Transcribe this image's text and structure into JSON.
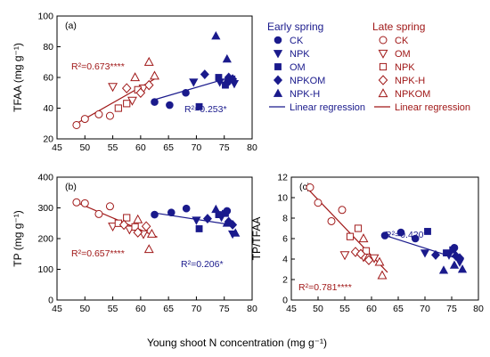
{
  "figure": {
    "shared_xlabel": "Young shoot N concentration (mg g⁻¹)",
    "colors": {
      "early": "#1a1a8c",
      "late": "#a01818",
      "axis": "#000000"
    }
  },
  "legend": {
    "early": {
      "title": "Early spring",
      "items": [
        "CK",
        "NPK",
        "OM",
        "NPKOM",
        "NPK-H"
      ],
      "markers": [
        "circle",
        "triangle-down",
        "square",
        "diamond",
        "triangle-up"
      ],
      "regression_label": "Linear regression"
    },
    "late": {
      "title": "Late spring",
      "items": [
        "CK",
        "OM",
        "NPK",
        "NPK-H",
        "NPKOM"
      ],
      "markers": [
        "circle-open",
        "triangle-down-open",
        "square-open",
        "diamond-open",
        "triangle-up-open"
      ],
      "regression_label": "Linear regression"
    }
  },
  "chart_data": [
    {
      "type": "scatter",
      "panel": "(a)",
      "ylabel": "TFAA (mg g⁻¹)",
      "xlim": [
        45,
        80
      ],
      "ylim": [
        20,
        100
      ],
      "xticks": [
        45,
        50,
        55,
        60,
        65,
        70,
        75,
        80
      ],
      "yticks": [
        20,
        40,
        60,
        80,
        100
      ],
      "early_r2": "R²=0.253*",
      "late_r2": "R²=0.673****",
      "series": [
        {
          "group": "early",
          "treatment": "CK",
          "marker": "circle",
          "x": [
            62.5,
            65.2,
            68.1,
            75.6
          ],
          "y": [
            44,
            42,
            50,
            57
          ]
        },
        {
          "group": "early",
          "treatment": "NPK",
          "marker": "triangle-down",
          "x": [
            69.5,
            74.2,
            76.8
          ],
          "y": [
            57,
            57,
            56
          ]
        },
        {
          "group": "early",
          "treatment": "OM",
          "marker": "square",
          "x": [
            70.5,
            74.0,
            75.2
          ],
          "y": [
            41,
            60,
            55
          ]
        },
        {
          "group": "early",
          "treatment": "NPKOM",
          "marker": "diamond",
          "x": [
            71.5,
            75.8,
            76.5
          ],
          "y": [
            62,
            60,
            59
          ]
        },
        {
          "group": "early",
          "treatment": "NPK-H",
          "marker": "triangle-up",
          "x": [
            73.5,
            75.5
          ],
          "y": [
            87,
            72
          ]
        },
        {
          "group": "late",
          "treatment": "CK",
          "marker": "circle-open",
          "x": [
            48.5,
            50.0,
            52.5,
            54.5
          ],
          "y": [
            29,
            33,
            36,
            35
          ]
        },
        {
          "group": "late",
          "treatment": "OM",
          "marker": "triangle-down-open",
          "x": [
            55.0,
            58.5,
            60.5
          ],
          "y": [
            54,
            45,
            53
          ]
        },
        {
          "group": "late",
          "treatment": "NPK",
          "marker": "square-open",
          "x": [
            56.0,
            57.5,
            59.5
          ],
          "y": [
            40,
            43,
            52
          ]
        },
        {
          "group": "late",
          "treatment": "NPK-H",
          "marker": "diamond-open",
          "x": [
            57.5,
            60.0,
            61.5
          ],
          "y": [
            53,
            50,
            55
          ]
        },
        {
          "group": "late",
          "treatment": "NPKOM",
          "marker": "triangle-up-open",
          "x": [
            59.0,
            61.5,
            62.5
          ],
          "y": [
            60,
            70,
            61
          ]
        }
      ],
      "regressions": [
        {
          "group": "early",
          "x": [
            62,
            77
          ],
          "y": [
            45,
            61
          ]
        },
        {
          "group": "late",
          "x": [
            48,
            63
          ],
          "y": [
            29,
            60
          ]
        }
      ]
    },
    {
      "type": "scatter",
      "panel": "(b)",
      "ylabel": "TP (mg g⁻¹)",
      "xlim": [
        45,
        80
      ],
      "ylim": [
        0,
        400
      ],
      "xticks": [
        45,
        50,
        55,
        60,
        65,
        70,
        75,
        80
      ],
      "yticks": [
        0,
        100,
        200,
        300,
        400
      ],
      "early_r2": "R²=0.206*",
      "late_r2": "R²=0.657****",
      "series": [
        {
          "group": "early",
          "treatment": "CK",
          "marker": "circle",
          "x": [
            62.5,
            65.5,
            68.2,
            75.5
          ],
          "y": [
            278,
            285,
            298,
            290
          ]
        },
        {
          "group": "early",
          "treatment": "NPK",
          "marker": "triangle-down",
          "x": [
            70.0,
            74.5,
            76.5
          ],
          "y": [
            260,
            270,
            215
          ]
        },
        {
          "group": "early",
          "treatment": "OM",
          "marker": "square",
          "x": [
            70.5,
            74.0,
            75.2
          ],
          "y": [
            232,
            278,
            282
          ]
        },
        {
          "group": "early",
          "treatment": "NPKOM",
          "marker": "diamond",
          "x": [
            72.0,
            75.8,
            76.5
          ],
          "y": [
            265,
            255,
            245
          ]
        },
        {
          "group": "early",
          "treatment": "NPK-H",
          "marker": "triangle-up",
          "x": [
            73.5,
            75.5,
            77.0
          ],
          "y": [
            295,
            250,
            218
          ]
        },
        {
          "group": "late",
          "treatment": "CK",
          "marker": "circle-open",
          "x": [
            48.5,
            50.0,
            52.5,
            54.5
          ],
          "y": [
            318,
            315,
            280,
            305
          ]
        },
        {
          "group": "late",
          "treatment": "OM",
          "marker": "triangle-down-open",
          "x": [
            55.0,
            58.0,
            60.5
          ],
          "y": [
            240,
            230,
            215
          ]
        },
        {
          "group": "late",
          "treatment": "NPK",
          "marker": "square-open",
          "x": [
            56.0,
            57.5,
            59.0
          ],
          "y": [
            250,
            268,
            238
          ]
        },
        {
          "group": "late",
          "treatment": "NPK-H",
          "marker": "diamond-open",
          "x": [
            57.0,
            59.5,
            61.0
          ],
          "y": [
            245,
            220,
            240
          ]
        },
        {
          "group": "late",
          "treatment": "NPKOM",
          "marker": "triangle-up-open",
          "x": [
            59.5,
            61.5,
            62.0
          ],
          "y": [
            262,
            165,
            215
          ]
        }
      ],
      "regressions": [
        {
          "group": "early",
          "x": [
            62,
            77
          ],
          "y": [
            285,
            243
          ]
        },
        {
          "group": "late",
          "x": [
            48,
            63
          ],
          "y": [
            322,
            205
          ]
        }
      ]
    },
    {
      "type": "scatter",
      "panel": "(c)",
      "ylabel": "TP/TFAA",
      "xlim": [
        45,
        80
      ],
      "ylim": [
        0,
        12
      ],
      "xticks": [
        45,
        50,
        55,
        60,
        65,
        70,
        75,
        80
      ],
      "yticks": [
        0,
        2,
        4,
        6,
        8,
        10,
        12
      ],
      "early_r2": "R²=0.420**",
      "late_r2": "R²=0.781****",
      "series": [
        {
          "group": "early",
          "treatment": "CK",
          "marker": "circle",
          "x": [
            62.5,
            65.5,
            68.2,
            75.5
          ],
          "y": [
            6.3,
            6.6,
            6.0,
            5.1
          ]
        },
        {
          "group": "early",
          "treatment": "NPK",
          "marker": "triangle-down",
          "x": [
            70.0,
            74.5,
            76.5
          ],
          "y": [
            4.6,
            4.4,
            3.7
          ]
        },
        {
          "group": "early",
          "treatment": "OM",
          "marker": "square",
          "x": [
            70.5,
            74.0,
            75.2
          ],
          "y": [
            6.7,
            4.6,
            4.9
          ]
        },
        {
          "group": "early",
          "treatment": "NPKOM",
          "marker": "diamond",
          "x": [
            72.0,
            75.8,
            76.5
          ],
          "y": [
            4.4,
            4.3,
            4.1
          ]
        },
        {
          "group": "early",
          "treatment": "NPK-H",
          "marker": "triangle-up",
          "x": [
            73.5,
            75.5,
            77.0
          ],
          "y": [
            2.9,
            3.4,
            3.0
          ]
        },
        {
          "group": "late",
          "treatment": "CK",
          "marker": "circle-open",
          "x": [
            48.5,
            50.0,
            52.5,
            54.5
          ],
          "y": [
            11.0,
            9.5,
            7.7,
            8.8
          ]
        },
        {
          "group": "late",
          "treatment": "OM",
          "marker": "triangle-down-open",
          "x": [
            55.0,
            58.5,
            60.5
          ],
          "y": [
            4.4,
            4.2,
            4.1
          ]
        },
        {
          "group": "late",
          "treatment": "NPK",
          "marker": "square-open",
          "x": [
            56.0,
            57.5,
            59.0
          ],
          "y": [
            6.2,
            7.0,
            4.8
          ]
        },
        {
          "group": "late",
          "treatment": "NPK-H",
          "marker": "diamond-open",
          "x": [
            57.0,
            58.0,
            59.5
          ],
          "y": [
            4.7,
            4.5,
            3.9
          ]
        },
        {
          "group": "late",
          "treatment": "NPKOM",
          "marker": "triangle-up-open",
          "x": [
            58.5,
            61.5,
            62.0
          ],
          "y": [
            6.0,
            3.7,
            2.4
          ]
        }
      ],
      "regressions": [
        {
          "group": "early",
          "x": [
            62,
            77
          ],
          "y": [
            6.4,
            3.9
          ]
        },
        {
          "group": "late",
          "x": [
            48,
            63
          ],
          "y": [
            10.9,
            2.7
          ]
        }
      ]
    }
  ]
}
